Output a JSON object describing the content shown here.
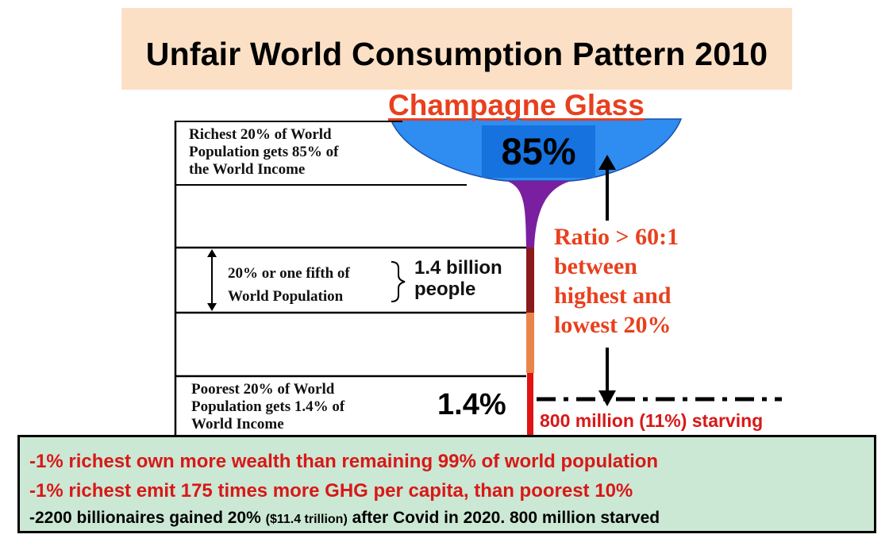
{
  "title": "Unfair World Consumption Pattern 2010",
  "subtitle": "Champagne Glass",
  "tiers": {
    "richest": [
      "Richest 20% of  World",
      "Population gets 85% of",
      "the World Income"
    ],
    "fifth": [
      "20% or one fifth of",
      "World Population"
    ],
    "poorest": [
      "Poorest 20% of  World",
      "Population gets 1.4% of",
      "World Income"
    ]
  },
  "people": [
    "1.4 billion",
    "people"
  ],
  "percent_top": "85%",
  "percent_bottom": "1.4%",
  "ratio_text": [
    "Ratio > 60:1",
    "between",
    "highest and",
    "lowest 20%"
  ],
  "starving": "800 million (11%) starving",
  "facts": {
    "line1": "-1% richest own more wealth than remaining 99% of world population",
    "line2": "-1% richest emit 175 times more GHG per capita, than poorest 10%",
    "line3_a": "-2200 billionaires gained 20% ",
    "line3_b": "($11.4 trillion)",
    "line3_c": " after Covid in 2020. 800 million starved"
  },
  "colors": {
    "title_bg": "#fbe0c6",
    "bowl": "#2f8cf0",
    "label_box": "#1572df",
    "stem_upper": "#7a1fa0",
    "stem_mid": "#8b1a1a",
    "stem_lower": "#e8864a",
    "stem_base": "#e01414",
    "accent_red": "#e8401e",
    "facts_bg": "#cbe8d4"
  }
}
